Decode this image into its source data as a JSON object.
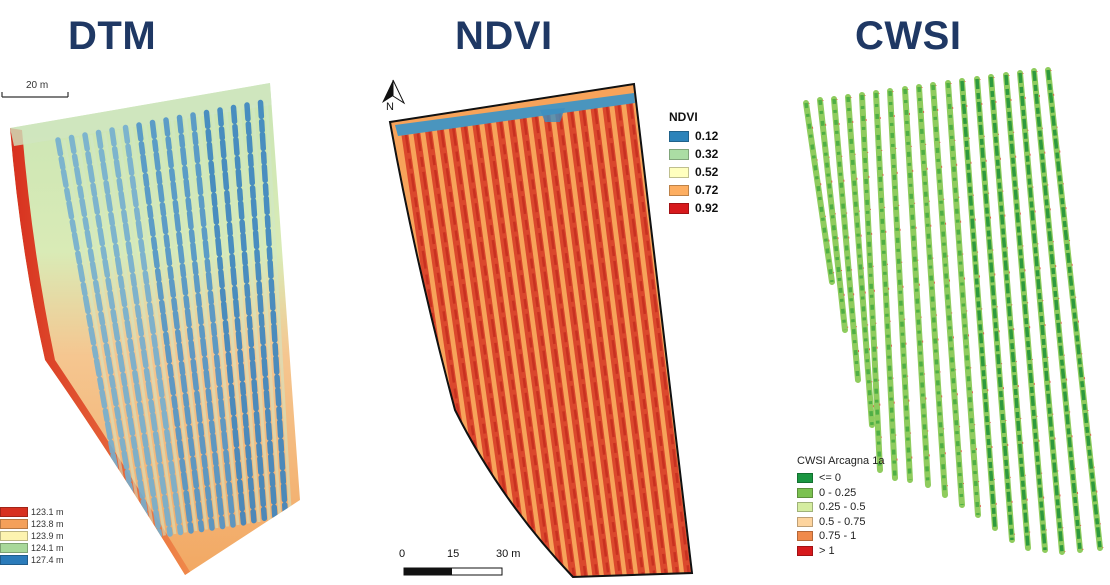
{
  "titles": {
    "dtm": "DTM",
    "ndvi": "NDVI",
    "cwsi": "CWSI"
  },
  "dtm": {
    "scalebar_label": "20 m",
    "legend": [
      {
        "label": "123.1 m",
        "color": "#d7301f"
      },
      {
        "label": "123.8 m",
        "color": "#f4a05a"
      },
      {
        "label": "123.9 m",
        "color": "#fdf3b0"
      },
      {
        "label": "124.1 m",
        "color": "#a8d89a"
      },
      {
        "label": "127.4 m",
        "color": "#2b7bba"
      }
    ]
  },
  "ndvi": {
    "north_label": "N",
    "legend_title": "NDVI",
    "legend": [
      {
        "label": "0.12",
        "color": "#2b83ba"
      },
      {
        "label": "0.32",
        "color": "#abdda4"
      },
      {
        "label": "0.52",
        "color": "#ffffbf"
      },
      {
        "label": "0.72",
        "color": "#fdae61"
      },
      {
        "label": "0.92",
        "color": "#d7191c"
      }
    ],
    "scale": {
      "t0": "0",
      "t1": "15",
      "t2": "30 m"
    }
  },
  "cwsi": {
    "legend_title": "CWSI Arcagna 1a",
    "legend": [
      {
        "label": "<= 0",
        "color": "#1a9641"
      },
      {
        "label": "0 - 0.25",
        "color": "#7bc150"
      },
      {
        "label": "0.25 - 0.5",
        "color": "#d5eda0"
      },
      {
        "label": "0.5 - 0.75",
        "color": "#fdd49e"
      },
      {
        "label": "0.75 - 1",
        "color": "#f08a4b"
      },
      {
        "label": "> 1",
        "color": "#d7191c"
      }
    ]
  }
}
